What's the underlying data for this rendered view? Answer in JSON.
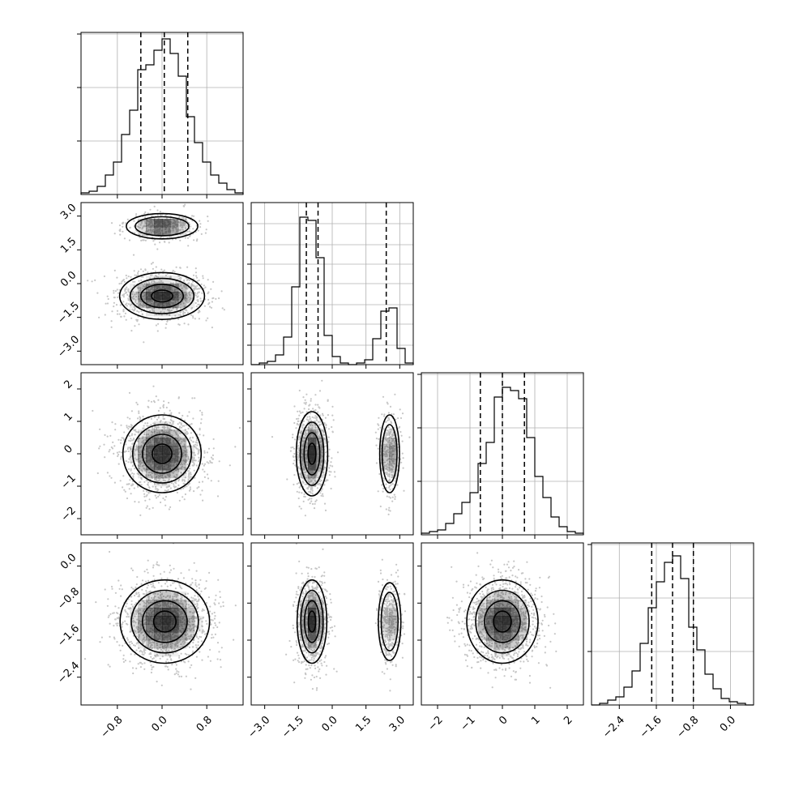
{
  "chart_data": {
    "type": "corner",
    "parameters": 4,
    "grid": true,
    "colors": {
      "line": "#000000",
      "density": "#000000",
      "grid": "#b0b0b0",
      "background": "#ffffff"
    },
    "ranges": [
      [
        -1.45,
        1.45
      ],
      [
        -3.6,
        3.6
      ],
      [
        -2.5,
        2.5
      ],
      [
        -3.0,
        0.5
      ]
    ],
    "xticks": [
      {
        "values": [
          -0.8,
          0.0,
          0.8
        ],
        "labels": [
          "−0.8",
          "0.0",
          "0.8"
        ]
      },
      {
        "values": [
          -3.0,
          -1.5,
          0.0,
          1.5,
          3.0
        ],
        "labels": [
          "−3.0",
          "−1.5",
          "0.0",
          "1.5",
          "3.0"
        ]
      },
      {
        "values": [
          -2,
          -1,
          0,
          1,
          2
        ],
        "labels": [
          "−2",
          "−1",
          "0",
          "1",
          "2"
        ]
      },
      {
        "values": [
          -2.4,
          -1.6,
          -0.8,
          0.0
        ],
        "labels": [
          "−2.4",
          "−1.6",
          "−0.8",
          "0.0"
        ]
      }
    ],
    "yticks": [
      null,
      {
        "values": [
          3.0,
          1.5,
          0.0,
          -1.5,
          -3.0
        ],
        "labels": [
          "3.0",
          "1.5",
          "0.0",
          "−1.5",
          "−3.0"
        ]
      },
      {
        "values": [
          2,
          1,
          0,
          -1,
          -2
        ],
        "labels": [
          "2",
          "1",
          "0",
          "−1",
          "−2"
        ]
      },
      {
        "values": [
          0.0,
          -0.8,
          -1.6,
          -2.4
        ],
        "labels": [
          "0.0",
          "−0.8",
          "−1.6",
          "−2.4"
        ]
      }
    ],
    "histograms": [
      {
        "param": 0,
        "bin_edges": [
          -1.45,
          -1.305,
          -1.16,
          -1.015,
          -0.87,
          -0.725,
          -0.58,
          -0.435,
          -0.29,
          -0.145,
          0.0,
          0.145,
          0.29,
          0.435,
          0.58,
          0.725,
          0.87,
          1.015,
          1.16,
          1.305,
          1.45
        ],
        "counts": [
          0.01,
          0.02,
          0.05,
          0.12,
          0.2,
          0.37,
          0.52,
          0.77,
          0.8,
          0.89,
          0.96,
          0.87,
          0.73,
          0.48,
          0.32,
          0.2,
          0.12,
          0.07,
          0.03,
          0.01
        ],
        "ymax": 1.0,
        "gridlines": [
          0.33,
          0.66,
          0.99
        ],
        "quantiles": [
          -0.38,
          0.04,
          0.46
        ]
      },
      {
        "param": 1,
        "bin_edges": [
          -3.6,
          -3.24,
          -2.88,
          -2.52,
          -2.16,
          -1.8,
          -1.44,
          -1.08,
          -0.72,
          -0.36,
          0.0,
          0.36,
          0.72,
          1.08,
          1.44,
          1.8,
          2.16,
          2.52,
          2.88,
          3.24,
          3.6
        ],
        "counts": [
          0.0,
          0.01,
          0.02,
          0.06,
          0.17,
          0.48,
          0.91,
          0.89,
          0.66,
          0.18,
          0.05,
          0.01,
          0.0,
          0.01,
          0.03,
          0.16,
          0.33,
          0.35,
          0.1,
          0.01
        ],
        "ymax": 1.0,
        "gridlines": [
          0.12,
          0.25,
          0.37,
          0.5,
          0.62,
          0.74,
          0.87
        ],
        "quantiles": [
          -1.15,
          -0.63,
          2.4
        ]
      },
      {
        "param": 2,
        "bin_edges": [
          -2.5,
          -2.25,
          -2.0,
          -1.75,
          -1.5,
          -1.25,
          -1.0,
          -0.75,
          -0.5,
          -0.25,
          0.0,
          0.25,
          0.5,
          0.75,
          1.0,
          1.25,
          1.5,
          1.75,
          2.0,
          2.25,
          2.5
        ],
        "counts": [
          0.01,
          0.02,
          0.03,
          0.07,
          0.13,
          0.2,
          0.26,
          0.44,
          0.57,
          0.85,
          0.91,
          0.89,
          0.84,
          0.6,
          0.36,
          0.23,
          0.11,
          0.05,
          0.02,
          0.01
        ],
        "ymax": 1.0,
        "gridlines": [
          0.33,
          0.66,
          0.99
        ],
        "quantiles": [
          -0.68,
          0.0,
          0.68
        ]
      },
      {
        "param": 3,
        "bin_edges": [
          -3.0,
          -2.825,
          -2.65,
          -2.475,
          -2.3,
          -2.125,
          -1.95,
          -1.775,
          -1.6,
          -1.425,
          -1.25,
          -1.075,
          -0.9,
          -0.725,
          -0.55,
          -0.375,
          -0.2,
          -0.025,
          0.15,
          0.325,
          0.5
        ],
        "counts": [
          0.0,
          0.01,
          0.03,
          0.05,
          0.11,
          0.21,
          0.38,
          0.6,
          0.76,
          0.88,
          0.92,
          0.78,
          0.48,
          0.34,
          0.19,
          0.1,
          0.04,
          0.02,
          0.01,
          0.0
        ],
        "ymax": 1.0,
        "gridlines": [
          0.33,
          0.66,
          0.99
        ],
        "quantiles": [
          -1.7,
          -1.25,
          -0.8
        ]
      }
    ],
    "pairs": [
      {
        "row": 1,
        "col": 0,
        "modes": [
          {
            "mx": 0.0,
            "my": -0.55,
            "sx": 0.38,
            "sy": 0.52,
            "w": 0.7
          },
          {
            "mx": 0.0,
            "my": 2.55,
            "sx": 0.32,
            "sy": 0.28,
            "w": 0.3
          }
        ]
      },
      {
        "row": 2,
        "col": 0,
        "modes": [
          {
            "mx": 0.0,
            "my": 0.0,
            "sx": 0.35,
            "sy": 0.6,
            "w": 1.0
          }
        ]
      },
      {
        "row": 2,
        "col": 1,
        "modes": [
          {
            "mx": -0.9,
            "my": 0.0,
            "sx": 0.35,
            "sy": 0.65,
            "w": 0.7
          },
          {
            "mx": 2.55,
            "my": 0.0,
            "sx": 0.22,
            "sy": 0.6,
            "w": 0.3
          }
        ]
      },
      {
        "row": 3,
        "col": 0,
        "modes": [
          {
            "mx": 0.05,
            "my": -1.2,
            "sx": 0.4,
            "sy": 0.45,
            "w": 1.0
          }
        ]
      },
      {
        "row": 3,
        "col": 1,
        "modes": [
          {
            "mx": -0.9,
            "my": -1.2,
            "sx": 0.33,
            "sy": 0.45,
            "w": 0.7
          },
          {
            "mx": 2.55,
            "my": -1.2,
            "sx": 0.25,
            "sy": 0.42,
            "w": 0.3
          }
        ]
      },
      {
        "row": 3,
        "col": 2,
        "modes": [
          {
            "mx": 0.0,
            "my": -1.2,
            "sx": 0.55,
            "sy": 0.45,
            "w": 1.0
          }
        ]
      }
    ]
  }
}
